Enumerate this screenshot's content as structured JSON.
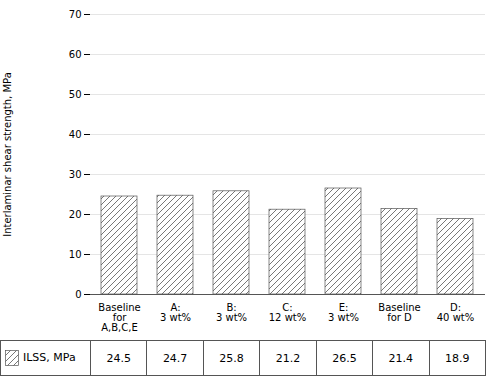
{
  "chart_data": {
    "type": "bar",
    "categories": [
      "Baseline\nfor\nA,B,C,E",
      "A:\n3 wt%",
      "B:\n3 wt%",
      "C:\n12 wt%",
      "E:\n3 wt%",
      "Baseline\nfor D",
      "D:\n40 wt%"
    ],
    "series": [
      {
        "name": "ILSS, MPa",
        "color": "#ffffff",
        "values": [
          24.5,
          24.7,
          25.8,
          21.2,
          26.5,
          21.4,
          18.9
        ]
      }
    ],
    "ylabel": "Interlaminar shear strength, MPa",
    "ylim": [
      0,
      70
    ],
    "yticks": [
      0,
      10,
      20,
      30,
      40,
      50,
      60,
      70
    ],
    "grid": true,
    "data_labels": true
  }
}
